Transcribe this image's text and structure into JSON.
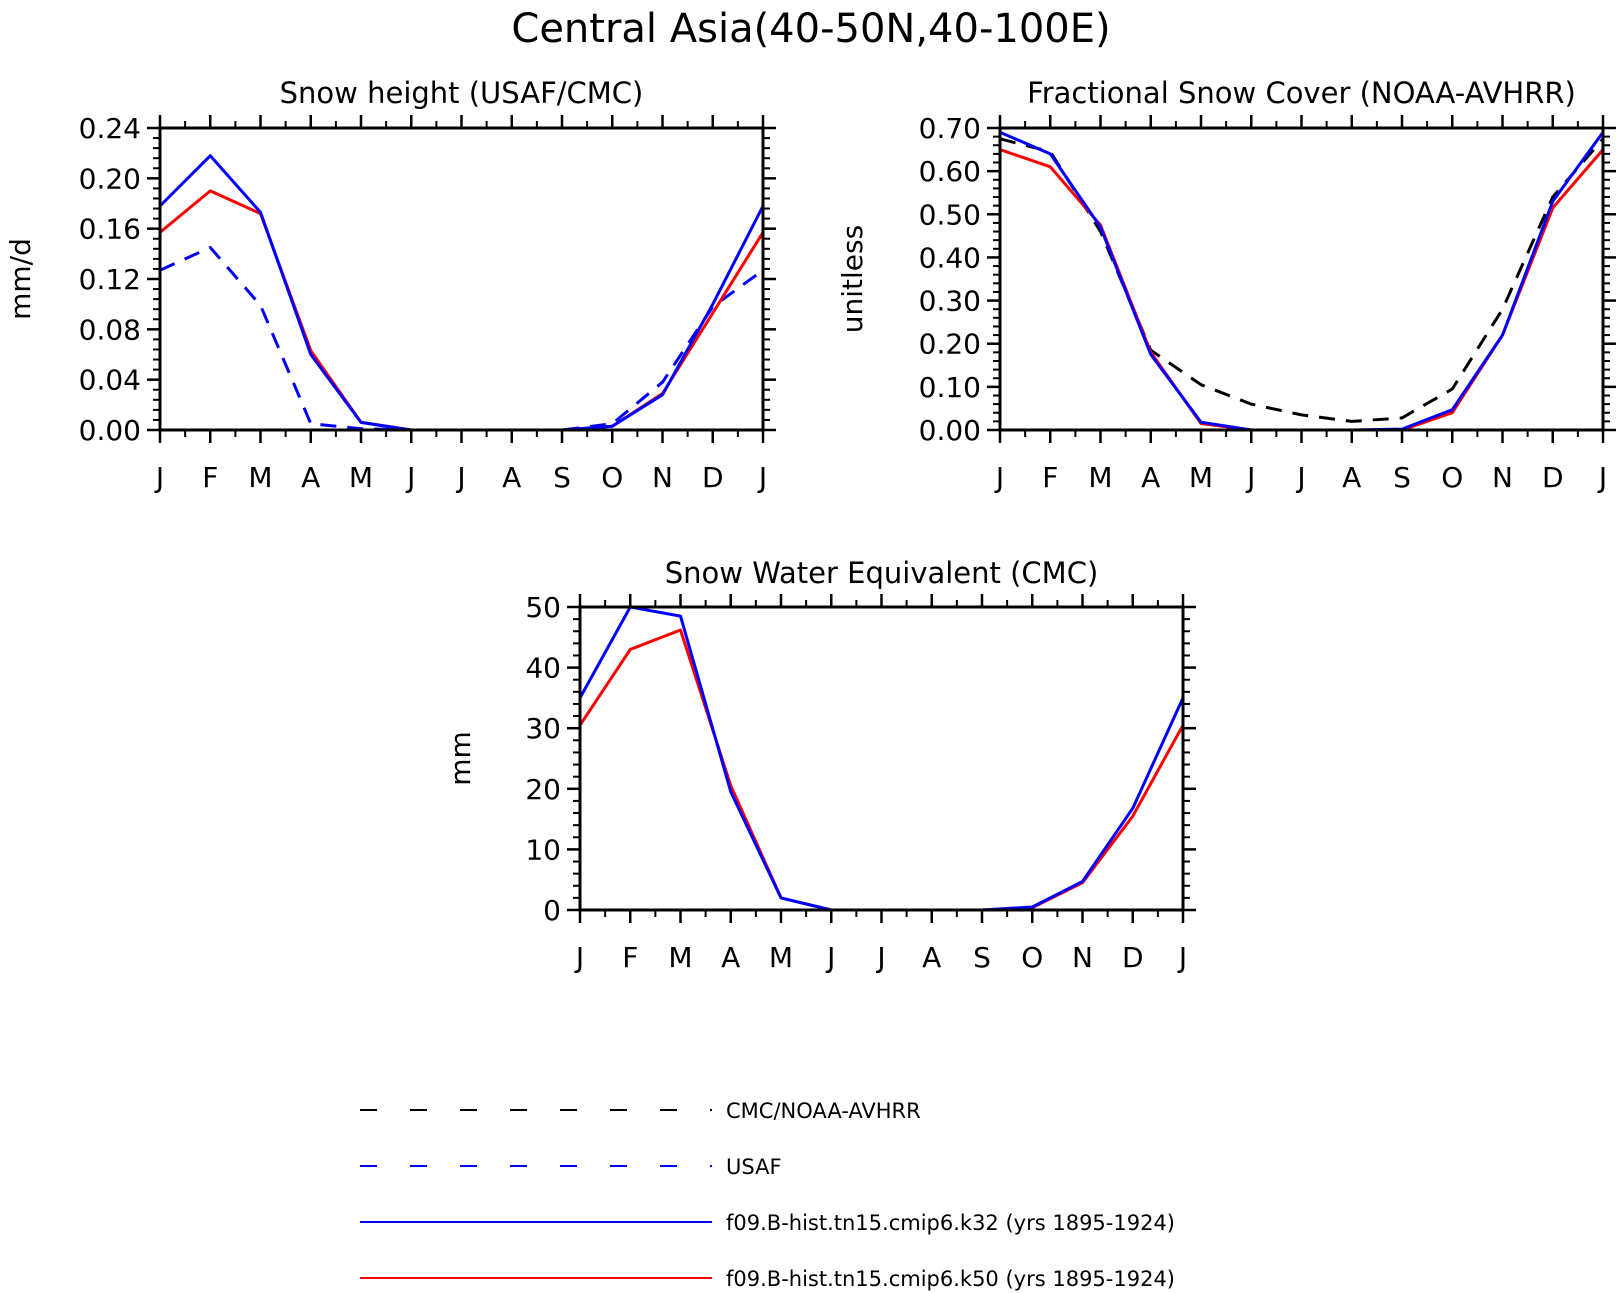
{
  "figure": {
    "title": "Central Asia(40-50N,40-100E)"
  },
  "series_styles": {
    "obs": {
      "color": "#000000",
      "dash": "dashed"
    },
    "usaf": {
      "color": "#0000ff",
      "dash": "dashed"
    },
    "k32": {
      "color": "#0000ff",
      "dash": "solid"
    },
    "k50": {
      "color": "#ff0000",
      "dash": "solid"
    }
  },
  "legend": [
    {
      "key": "obs",
      "label": "CMC/NOAA-AVHRR"
    },
    {
      "key": "usaf",
      "label": "USAF"
    },
    {
      "key": "k32",
      "label": "f09.B-hist.tn15.cmip6.k32 (yrs 1895-1924)"
    },
    {
      "key": "k50",
      "label": "f09.B-hist.tn15.cmip6.k50 (yrs 1895-1924)"
    }
  ],
  "chart_data": [
    {
      "type": "line",
      "title": "Snow height (USAF/CMC)",
      "xlabel": "",
      "ylabel": "mm/d",
      "categories": [
        "J",
        "F",
        "M",
        "A",
        "M",
        "J",
        "J",
        "A",
        "S",
        "O",
        "N",
        "D",
        "J"
      ],
      "ylim": [
        0,
        0.24
      ],
      "yticks": [
        "0.00",
        "0.04",
        "0.08",
        "0.12",
        "0.16",
        "0.20",
        "0.24"
      ],
      "grid": false,
      "series": [
        {
          "key": "usaf",
          "values": [
            0.127,
            0.145,
            0.099,
            0.005,
            0.001,
            0.0,
            0.0,
            0.0,
            0.0,
            0.005,
            0.038,
            0.098,
            0.127
          ]
        },
        {
          "key": "k50",
          "values": [
            0.157,
            0.19,
            0.172,
            0.063,
            0.006,
            0.0,
            0.0,
            0.0,
            0.0,
            0.003,
            0.029,
            0.093,
            0.157
          ]
        },
        {
          "key": "k32",
          "values": [
            0.178,
            0.218,
            0.173,
            0.06,
            0.006,
            0.0,
            0.0,
            0.0,
            0.0,
            0.003,
            0.028,
            0.1,
            0.178
          ]
        }
      ]
    },
    {
      "type": "line",
      "title": "Fractional Snow Cover (NOAA-AVHRR)",
      "xlabel": "",
      "ylabel": "unitless",
      "categories": [
        "J",
        "F",
        "M",
        "A",
        "M",
        "J",
        "J",
        "A",
        "S",
        "O",
        "N",
        "D",
        "J"
      ],
      "ylim": [
        0,
        0.7
      ],
      "yticks": [
        "0.00",
        "0.10",
        "0.20",
        "0.30",
        "0.40",
        "0.50",
        "0.60",
        "0.70"
      ],
      "grid": false,
      "series": [
        {
          "key": "obs",
          "values": [
            0.675,
            0.645,
            0.46,
            0.185,
            0.105,
            0.06,
            0.035,
            0.02,
            0.028,
            0.095,
            0.28,
            0.54,
            0.675
          ]
        },
        {
          "key": "k50",
          "values": [
            0.65,
            0.61,
            0.475,
            0.18,
            0.015,
            0.0,
            0.0,
            0.0,
            0.0,
            0.04,
            0.22,
            0.515,
            0.65
          ]
        },
        {
          "key": "k32",
          "values": [
            0.69,
            0.64,
            0.47,
            0.175,
            0.018,
            0.0,
            0.0,
            0.0,
            0.002,
            0.047,
            0.22,
            0.53,
            0.69
          ]
        }
      ]
    },
    {
      "type": "line",
      "title": "Snow Water Equivalent (CMC)",
      "xlabel": "",
      "ylabel": "mm",
      "categories": [
        "J",
        "F",
        "M",
        "A",
        "M",
        "J",
        "J",
        "A",
        "S",
        "O",
        "N",
        "D",
        "J"
      ],
      "ylim": [
        0,
        50
      ],
      "yticks": [
        "0",
        "10",
        "20",
        "30",
        "40",
        "50"
      ],
      "grid": false,
      "series": [
        {
          "key": "k50",
          "values": [
            30.5,
            43.0,
            46.2,
            20.5,
            2.0,
            0.0,
            0.0,
            0.0,
            0.0,
            0.4,
            4.5,
            15.5,
            30.5
          ]
        },
        {
          "key": "k32",
          "values": [
            35.0,
            50.0,
            48.5,
            19.5,
            2.0,
            0.0,
            0.0,
            0.0,
            0.0,
            0.5,
            4.7,
            16.8,
            35.0
          ]
        }
      ]
    }
  ]
}
